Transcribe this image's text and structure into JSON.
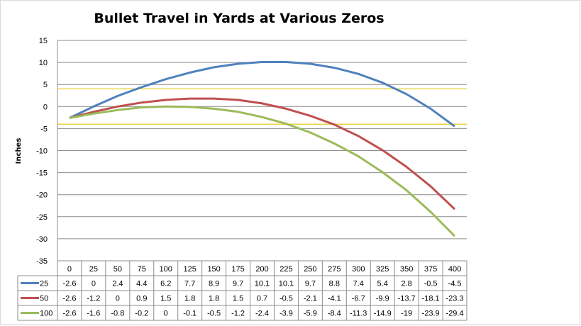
{
  "chart_data": {
    "type": "line",
    "title": "Bullet Travel in Yards at Various Zeros",
    "xlabel": "",
    "ylabel": "Inches",
    "ylim": [
      -35,
      15
    ],
    "yticks": [
      15,
      10,
      5,
      0,
      -5,
      -10,
      -15,
      -20,
      -25,
      -30,
      -35
    ],
    "categories": [
      "0",
      "25",
      "50",
      "75",
      "100",
      "125",
      "150",
      "175",
      "200",
      "225",
      "250",
      "275",
      "300",
      "325",
      "350",
      "375",
      "400"
    ],
    "series": [
      {
        "name": "25",
        "color": "#4f81bd",
        "values": [
          -2.6,
          0,
          2.4,
          4.4,
          6.2,
          7.7,
          8.9,
          9.7,
          10.1,
          10.1,
          9.7,
          8.8,
          7.4,
          5.4,
          2.8,
          -0.5,
          -4.5
        ]
      },
      {
        "name": "50",
        "color": "#c0504d",
        "values": [
          -2.6,
          -1.2,
          0,
          0.9,
          1.5,
          1.8,
          1.8,
          1.5,
          0.7,
          -0.5,
          -2.1,
          -4.1,
          -6.7,
          -9.9,
          -13.7,
          -18.1,
          -23.3
        ]
      },
      {
        "name": "100",
        "color": "#9bbb59",
        "values": [
          -2.6,
          -1.6,
          -0.8,
          -0.2,
          0,
          -0.1,
          -0.5,
          -1.2,
          -2.4,
          -3.9,
          -5.9,
          -8.4,
          -11.3,
          -14.9,
          -19,
          -23.9,
          -29.4
        ]
      }
    ],
    "reference_lines": [
      {
        "value": 4,
        "color": "#e6c300"
      },
      {
        "value": -4,
        "color": "#e6c300"
      }
    ],
    "grid": true,
    "legend": "data-table",
    "data_table": true
  }
}
